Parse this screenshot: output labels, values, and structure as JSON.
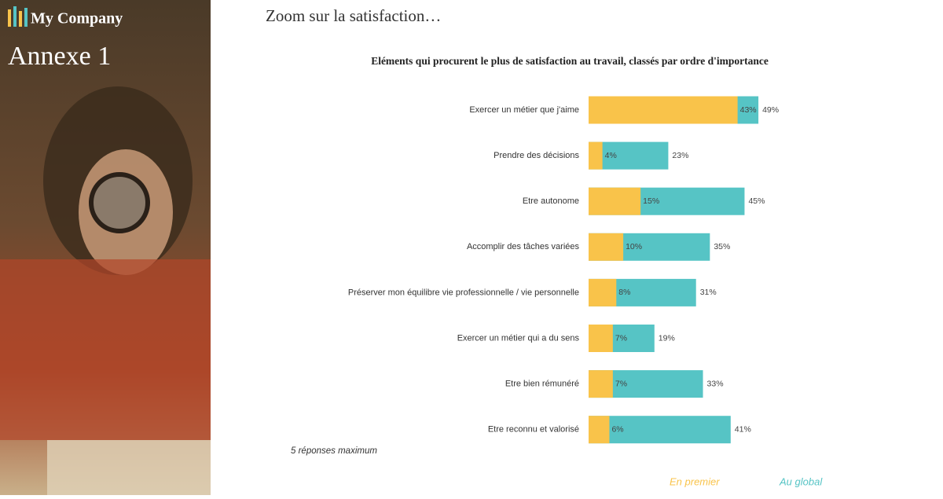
{
  "header": {
    "brand": "My Company",
    "section": "Annexe 1",
    "title": "Zoom sur la satisfaction…"
  },
  "chart_data": {
    "type": "overlap-barh",
    "title": "Eléments qui procurent le plus de satisfaction au travail, classés par ordre d'importance",
    "categories": [
      "Exercer un métier que j'aime",
      "Prendre des décisions",
      "Etre autonome",
      "Accomplir des tâches variées",
      "Préserver mon équilibre vie professionnelle / vie personnelle",
      "Exercer un métier qui a du sens",
      "Etre bien rémunéré",
      "Etre reconnu et valorisé"
    ],
    "series": [
      {
        "name": "Au global",
        "color": "#56c4c5",
        "values": [
          49,
          23,
          45,
          35,
          31,
          19,
          33,
          41
        ],
        "value_labels": [
          "49%",
          "23%",
          "45%",
          "35%",
          "31%",
          "19%",
          "33%",
          "41%"
        ]
      },
      {
        "name": "En premier",
        "color": "#f9c34a",
        "values": [
          43,
          4,
          15,
          10,
          8,
          7,
          7,
          6
        ],
        "value_labels": [
          "43%",
          "4%",
          "15%",
          "10%",
          "8%",
          "7%",
          "7%",
          "6%"
        ]
      }
    ],
    "note": "5 réponses maximum"
  }
}
